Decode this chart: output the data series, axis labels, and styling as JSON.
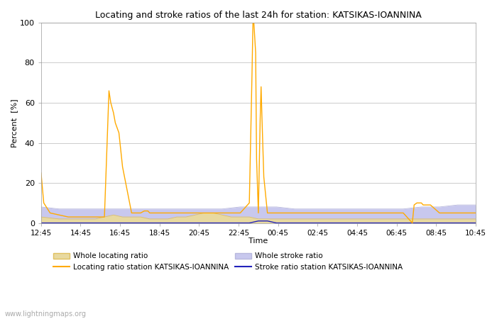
{
  "title": "Locating and stroke ratios of the last 24h for station: KATSIKAS-IOANNINA",
  "xlabel": "Time",
  "ylabel": "Percent  [%]",
  "ylim": [
    0,
    100
  ],
  "yticks": [
    0,
    20,
    40,
    60,
    80,
    100
  ],
  "xtick_labels": [
    "12:45",
    "14:45",
    "16:45",
    "18:45",
    "20:45",
    "22:45",
    "00:45",
    "02:45",
    "04:45",
    "06:45",
    "08:45",
    "10:45"
  ],
  "background_color": "#ffffff",
  "grid_color": "#cccccc",
  "watermark": "www.lightningmaps.org",
  "loc_station_x": [
    0,
    0.05,
    0.15,
    0.5,
    1.0,
    1.5,
    2.0,
    2.5,
    3.0,
    3.5,
    3.6,
    3.75,
    3.85,
    4.0,
    4.1,
    4.3,
    4.5,
    5.0,
    5.5,
    5.7,
    5.75,
    5.8,
    5.9,
    6.0,
    6.5,
    7.0,
    7.5,
    8.0,
    8.5,
    9.0,
    9.5,
    10.0,
    10.5,
    11.0,
    11.5,
    11.6,
    11.65,
    11.7,
    11.75,
    11.85,
    11.9,
    12.0,
    12.1,
    12.15,
    12.2,
    12.3,
    12.5,
    13.0,
    13.5,
    14.0,
    14.5,
    15.0,
    15.5,
    16.0,
    16.5,
    17.0,
    17.5,
    18.0,
    18.5,
    19.0,
    19.5,
    20.0,
    20.5,
    20.6,
    20.75,
    20.85,
    21.0,
    21.1,
    21.3,
    21.5,
    22.0,
    22.5,
    23.0,
    23.5,
    24.0
  ],
  "loc_station_y": [
    25,
    20,
    10,
    5,
    4,
    3,
    3,
    3,
    3,
    3,
    28,
    66,
    60,
    55,
    50,
    45,
    28,
    5,
    5,
    6,
    6,
    6,
    6,
    5,
    5,
    5,
    5,
    5,
    5,
    5,
    5,
    5,
    5,
    5,
    10,
    53,
    75,
    100,
    100,
    85,
    32,
    5,
    52,
    68,
    52,
    23,
    5,
    5,
    5,
    5,
    5,
    5,
    5,
    5,
    5,
    5,
    5,
    5,
    5,
    5,
    5,
    5,
    0,
    9,
    10,
    10,
    10,
    9,
    9,
    9,
    5,
    5,
    5,
    5,
    5
  ],
  "whole_loc_x": [
    0,
    1,
    2,
    3,
    3.5,
    4.0,
    4.5,
    5.0,
    5.5,
    6.0,
    6.5,
    7.0,
    7.5,
    8.0,
    8.5,
    9.0,
    9.5,
    10.0,
    10.5,
    11.0,
    11.5,
    12.0,
    12.5,
    13.0,
    13.5,
    14.0,
    14.5,
    15.0,
    15.5,
    16.0,
    16.5,
    17.0,
    17.5,
    18.0,
    18.5,
    19.0,
    19.5,
    20.0,
    20.5,
    21.0,
    21.5,
    22.0,
    22.5,
    23.0,
    23.5,
    24.0
  ],
  "whole_loc_y": [
    3,
    2,
    2,
    2,
    3,
    4,
    3,
    3,
    3,
    2,
    2,
    2,
    3,
    3,
    4,
    5,
    5,
    4,
    3,
    3,
    3,
    2,
    2,
    2,
    2,
    2,
    2,
    2,
    2,
    2,
    2,
    2,
    2,
    2,
    2,
    2,
    2,
    2,
    2,
    2,
    2,
    2,
    2,
    2,
    2,
    2
  ],
  "stroke_station_x": [
    0,
    1,
    2,
    3,
    4,
    5,
    6,
    7,
    8,
    9,
    10,
    11,
    11.5,
    12.0,
    12.5,
    13.0,
    14.0,
    15.0,
    16.0,
    17.0,
    18.0,
    19.0,
    20.0,
    21.0,
    22.0,
    23.0,
    24.0
  ],
  "stroke_station_y": [
    0,
    0,
    0,
    0,
    0,
    0,
    0,
    0,
    0,
    0,
    0,
    0,
    0,
    1,
    1,
    0,
    0,
    0,
    0,
    0,
    0,
    0,
    0,
    0,
    0,
    0,
    0
  ],
  "whole_stroke_x": [
    0,
    1,
    2,
    3,
    4,
    5,
    6,
    7,
    8,
    9,
    10,
    11,
    12,
    13,
    14,
    15,
    16,
    17,
    18,
    19,
    20,
    21,
    22,
    23,
    24
  ],
  "whole_stroke_y": [
    8,
    7,
    7,
    7,
    7,
    7,
    7,
    7,
    7,
    7,
    7,
    8,
    8,
    8,
    7,
    7,
    7,
    7,
    7,
    7,
    7,
    8,
    8,
    9,
    9
  ],
  "color_loc_station": "#ffaa00",
  "color_loc_whole_fill": "#e8d9a0",
  "color_loc_whole_line": "#e0c060",
  "color_stroke_station": "#2222bb",
  "color_stroke_whole_fill": "#c8c8ee",
  "color_stroke_whole_line": "#b8b8dd",
  "legend_labels": [
    "Whole locating ratio",
    "Locating ratio station KATSIKAS-IOANNINA",
    "Whole stroke ratio",
    "Stroke ratio station KATSIKAS-IOANNINA"
  ],
  "figsize": [
    7.0,
    4.5
  ],
  "dpi": 100
}
